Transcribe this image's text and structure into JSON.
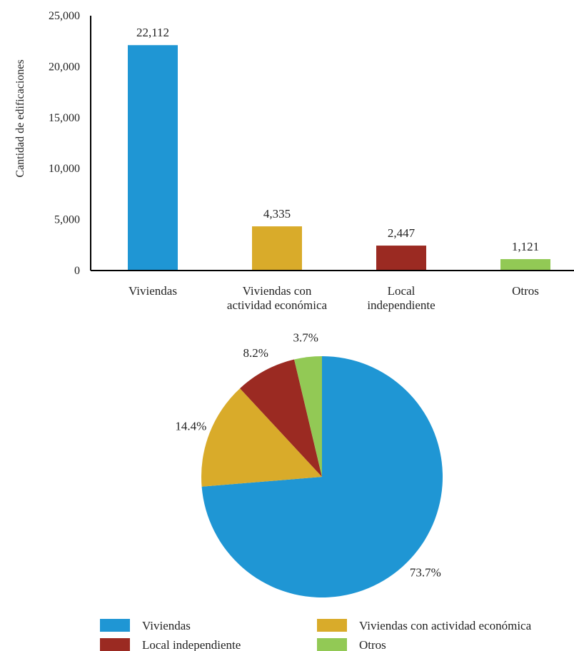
{
  "chart_data": [
    {
      "type": "bar",
      "ylabel": "Cantidad de edificaciones",
      "ylim": [
        0,
        25000
      ],
      "yticks": [
        "0",
        "5,000",
        "10,000",
        "15,000",
        "20,000",
        "25,000"
      ],
      "grid": false,
      "categories": [
        [
          "Viviendas"
        ],
        [
          "Viviendas con",
          "actividad económica"
        ],
        [
          "Local",
          "independiente"
        ],
        [
          "Otros"
        ]
      ],
      "values": [
        22112,
        4335,
        2447,
        1121
      ],
      "value_labels": [
        "22,112",
        "4,335",
        "2,447",
        "1,121"
      ],
      "colors": [
        "#1f96d4",
        "#d9ab2a",
        "#9b2a22",
        "#92c955"
      ]
    },
    {
      "type": "pie",
      "labels": [
        "Viviendas",
        "Viviendas con actividad económica",
        "Local independiente",
        "Otros"
      ],
      "values": [
        73.7,
        14.4,
        8.2,
        3.7
      ],
      "value_labels": [
        "73.7%",
        "14.4%",
        "8.2%",
        "3.7%"
      ],
      "colors": [
        "#1f96d4",
        "#d9ab2a",
        "#9b2a22",
        "#92c955"
      ],
      "legend": {
        "placement": "bottom",
        "items": [
          "Viviendas",
          "Viviendas con actividad económica",
          "Local independiente",
          "Otros"
        ]
      }
    }
  ]
}
